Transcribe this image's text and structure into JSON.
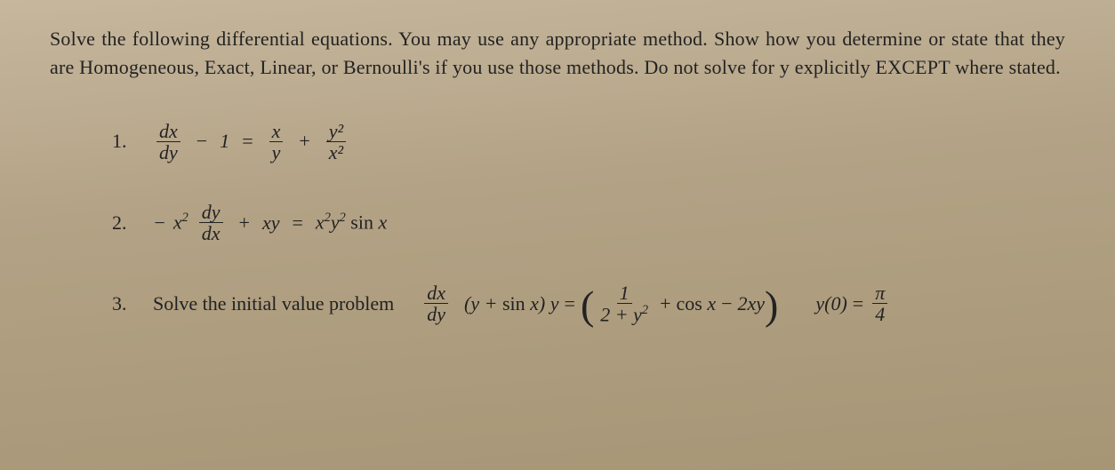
{
  "colors": {
    "background_top": "#c6b79d",
    "background_bottom": "#a69676",
    "text": "#222222",
    "rule": "#222222"
  },
  "typography": {
    "family": "Georgia / Times-like serif",
    "body_size_pt": 16,
    "math_size_pt": 16,
    "line_height": 1.45
  },
  "intro": "Solve the following differential equations. You may use any appropriate method. Show how you determine or state that they are Homogeneous, Exact, Linear, or Bernoulli's if you use those methods. Do not solve for y explicitly EXCEPT where stated.",
  "problems": [
    {
      "number": "1.",
      "math": {
        "lhs": {
          "frac": {
            "num": "dx",
            "den": "dy"
          },
          "minus": "1"
        },
        "eq": "=",
        "rhs": [
          {
            "frac": {
              "num": "x",
              "den": "y"
            }
          },
          "+",
          {
            "frac": {
              "num": "y²",
              "den": "x²"
            }
          }
        ]
      }
    },
    {
      "number": "2.",
      "math": {
        "lhs": {
          "neg": "−",
          "coef": "x²",
          "frac": {
            "num": "dy",
            "den": "dx"
          },
          "plus": "+",
          "term": "xy"
        },
        "eq": "=",
        "rhs": "x²y² sin x"
      }
    },
    {
      "number": "3.",
      "lead_text": "Solve the initial value problem",
      "math": {
        "frac": {
          "num": "dx",
          "den": "dy"
        },
        "factor": "(y + sin x) y",
        "eq": "=",
        "rhs_paren_open": "(",
        "rhs_terms": [
          {
            "frac": {
              "num": "1",
              "den": "2 + y²"
            }
          },
          "+",
          "cos x",
          "−",
          "2xy"
        ],
        "rhs_paren_close": ")"
      },
      "ic": {
        "lhs": "y(0)",
        "eq": "=",
        "rhs_frac": {
          "num": "π",
          "den": "4"
        }
      }
    }
  ]
}
